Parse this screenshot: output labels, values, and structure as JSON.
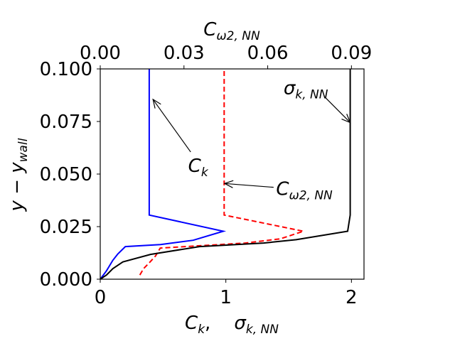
{
  "chart_data": {
    "type": "line",
    "title": "",
    "x_bottom": {
      "label_parts": [
        {
          "base": "C",
          "sub": "k"
        },
        {
          "text": ",    "
        },
        {
          "base": "σ",
          "sub": "k, NN"
        }
      ],
      "range": [
        0,
        2.1
      ],
      "ticks": [
        0,
        1,
        2
      ],
      "tick_labels": [
        "0",
        "1",
        "2"
      ]
    },
    "x_top": {
      "label_parts": [
        {
          "base": "C",
          "sub": "ω2, NN"
        }
      ],
      "range": [
        0,
        0.0945
      ],
      "ticks": [
        0,
        0.03,
        0.06,
        0.09
      ],
      "tick_labels": [
        "0.00",
        "0.03",
        "0.06",
        "0.09"
      ]
    },
    "y": {
      "label_parts": [
        {
          "base": "y − y",
          "sub": "wall"
        }
      ],
      "range": [
        0,
        0.1
      ],
      "ticks": [
        0,
        0.025,
        0.05,
        0.075,
        0.1
      ],
      "tick_labels": [
        "0.000",
        "0.025",
        "0.050",
        "0.075",
        "0.100"
      ]
    },
    "grid": false,
    "series": [
      {
        "key": "ck",
        "axis": "bottom",
        "color": "#0000ff",
        "dash": "solid",
        "points": [
          [
            0.0,
            0.0
          ],
          [
            0.05,
            0.004
          ],
          [
            0.1,
            0.009
          ],
          [
            0.14,
            0.012
          ],
          [
            0.2,
            0.0155
          ],
          [
            0.48,
            0.0165
          ],
          [
            0.74,
            0.0185
          ],
          [
            0.98,
            0.0228
          ],
          [
            0.39,
            0.0305
          ],
          [
            0.39,
            0.1
          ]
        ]
      },
      {
        "key": "comega",
        "axis": "top",
        "color": "#ff0000",
        "dash": "dashed",
        "points": [
          [
            0.0142,
            0.002
          ],
          [
            0.0155,
            0.005
          ],
          [
            0.0177,
            0.008
          ],
          [
            0.0198,
            0.011
          ],
          [
            0.0215,
            0.0148
          ],
          [
            0.052,
            0.0172
          ],
          [
            0.0645,
            0.0192
          ],
          [
            0.0728,
            0.0228
          ],
          [
            0.0444,
            0.0305
          ],
          [
            0.0444,
            0.1
          ]
        ]
      },
      {
        "key": "sigma",
        "axis": "bottom",
        "color": "#000000",
        "dash": "solid",
        "points": [
          [
            0.0,
            0.0
          ],
          [
            0.05,
            0.002
          ],
          [
            0.1,
            0.005
          ],
          [
            0.18,
            0.0082
          ],
          [
            0.4,
            0.0118
          ],
          [
            0.79,
            0.0155
          ],
          [
            1.3,
            0.0172
          ],
          [
            1.56,
            0.0188
          ],
          [
            1.97,
            0.0228
          ],
          [
            1.99,
            0.0305
          ],
          [
            1.99,
            0.1
          ]
        ]
      }
    ],
    "annotations": [
      {
        "key": "ck",
        "label_parts": [
          {
            "base": "C",
            "sub": "k"
          }
        ],
        "text_at": [
          0.7,
          0.051
        ],
        "arrow_tail": [
          0.72,
          0.0605
        ],
        "arrow_head": [
          0.42,
          0.0855
        ]
      },
      {
        "key": "comega",
        "label_parts": [
          {
            "base": "C",
            "sub": "ω2, NN"
          }
        ],
        "text_at": [
          1.4,
          0.04
        ],
        "arrow_tail": [
          1.38,
          0.0437
        ],
        "arrow_head": [
          0.99,
          0.0455
        ]
      },
      {
        "key": "sigma",
        "label_parts": [
          {
            "base": "σ",
            "sub": "k, NN"
          }
        ],
        "text_at": [
          1.46,
          0.088
        ],
        "arrow_tail": [
          1.79,
          0.0865
        ],
        "arrow_head": [
          1.99,
          0.0745
        ]
      }
    ]
  }
}
